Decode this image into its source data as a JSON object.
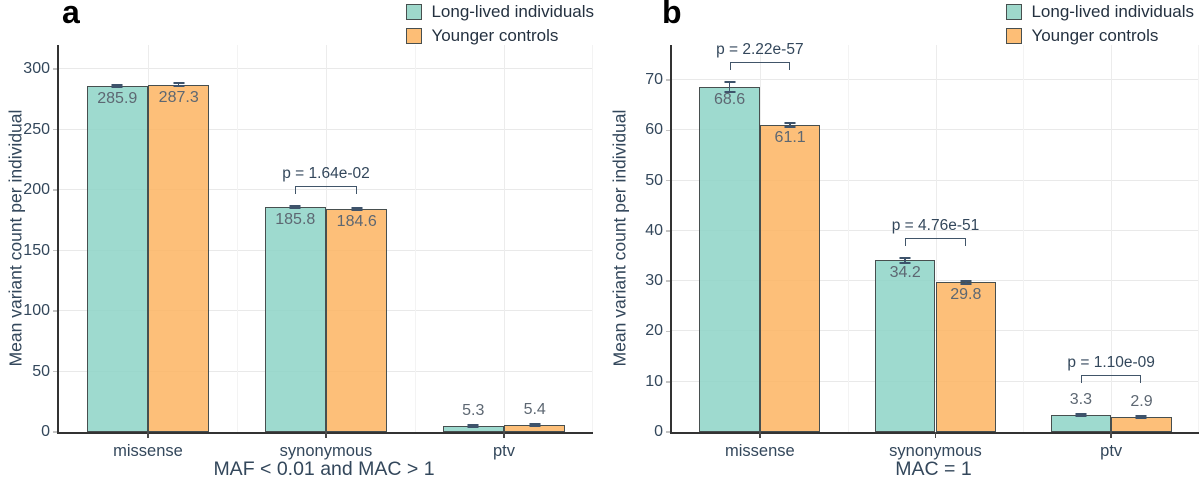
{
  "legend": {
    "items": [
      {
        "label": "Long-lived individuals",
        "color": "#9ED8CB"
      },
      {
        "label": "Younger controls",
        "color": "#FDBE76"
      }
    ],
    "position": "top-right"
  },
  "colors": {
    "long_lived_fill": "rgba(141,211,199,0.85)",
    "younger_fill": "rgba(253,180,98,0.85)",
    "long_lived_solid": "#9ED8CB",
    "younger_solid": "#FDBE76",
    "bar_border": "#474F4F",
    "error_bar": "#3E536B",
    "axis_line": "#333333",
    "grid_major": "#E9E9E9",
    "axis_text": "#33475B",
    "value_text": "#5D6772"
  },
  "chart_data": [
    {
      "type": "bar",
      "panel_label": "a",
      "xlabel": "MAF < 0.01 and MAC > 1",
      "ylabel": "Mean variant count per individual",
      "categories": [
        "missense",
        "synonymous",
        "ptv"
      ],
      "series": [
        {
          "name": "Long-lived individuals",
          "values": [
            285.9,
            185.8,
            5.3
          ],
          "se": [
            1.0,
            0.8,
            0.15
          ]
        },
        {
          "name": "Younger controls",
          "values": [
            287.3,
            184.6,
            5.4
          ],
          "se": [
            1.0,
            0.8,
            0.15
          ]
        }
      ],
      "p_values": [
        {
          "category": "synonymous",
          "label": "p = 1.64e-02"
        }
      ],
      "yticks": [
        0,
        50,
        100,
        150,
        200,
        250,
        300
      ],
      "ylim": [
        0,
        320
      ],
      "grid": true,
      "legend_position": "top-right"
    },
    {
      "type": "bar",
      "panel_label": "b",
      "xlabel": "MAC = 1",
      "ylabel": "Mean variant count per individual",
      "categories": [
        "missense",
        "synonymous",
        "ptv"
      ],
      "series": [
        {
          "name": "Long-lived individuals",
          "values": [
            68.6,
            34.2,
            3.3
          ],
          "se": [
            1.0,
            0.5,
            0.12
          ]
        },
        {
          "name": "Younger controls",
          "values": [
            61.1,
            29.8,
            2.9
          ],
          "se": [
            0.4,
            0.3,
            0.08
          ]
        }
      ],
      "p_values": [
        {
          "category": "missense",
          "label": "p = 2.22e-57"
        },
        {
          "category": "synonymous",
          "label": "p = 4.76e-51"
        },
        {
          "category": "ptv",
          "label": "p = 1.10e-09"
        }
      ],
      "yticks": [
        0,
        10,
        20,
        30,
        40,
        50,
        60,
        70
      ],
      "ylim": [
        0,
        77
      ],
      "grid": true,
      "legend_position": "top-right"
    }
  ]
}
